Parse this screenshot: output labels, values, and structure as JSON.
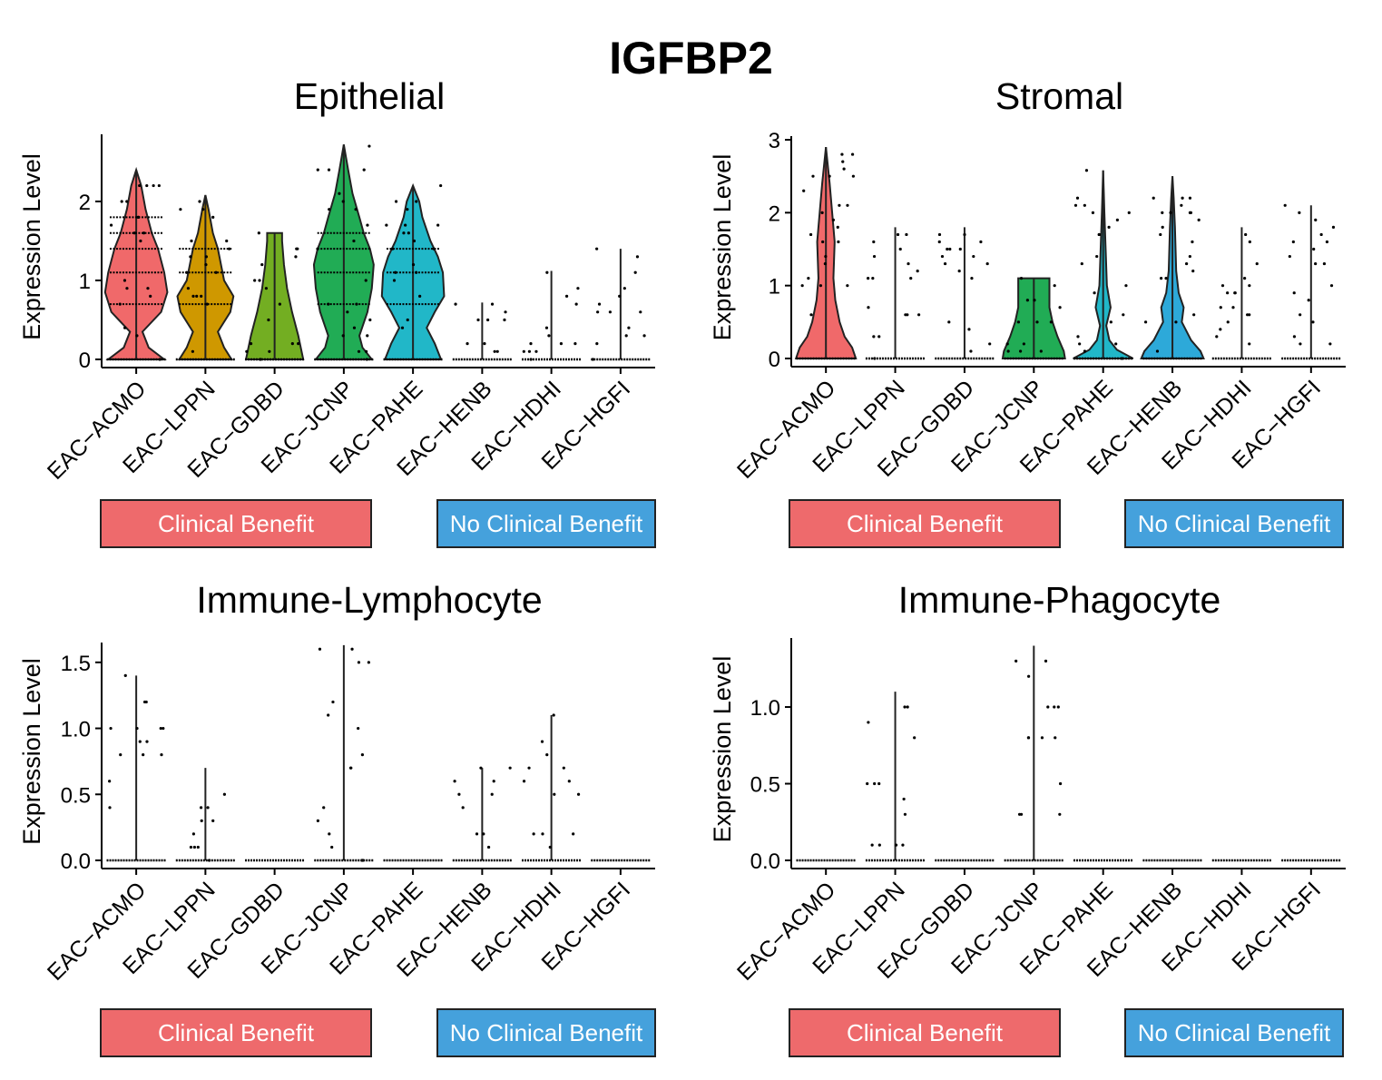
{
  "chart_data": {
    "type": "violin",
    "title": "IGFBP2",
    "categories": [
      "EAC−ACMO",
      "EAC−LPPN",
      "EAC−GDBD",
      "EAC−JCNP",
      "EAC−PAHE",
      "EAC−HENB",
      "EAC−HDHI",
      "EAC−HGFI"
    ],
    "category_colors": [
      "#F0696A",
      "#CF9800",
      "#73AE22",
      "#21AC55",
      "#21B7C8",
      "#2DA9D9",
      "#8F9BF0",
      "#E36BD8"
    ],
    "groups": [
      {
        "label": "Clinical Benefit",
        "color": "#EE6A6C"
      },
      {
        "label": "No Clinical Benefit",
        "color": "#45A1DC"
      }
    ],
    "panels": [
      {
        "title": "Epithelial",
        "ylabel": "Expression Level",
        "ylim": [
          0,
          2.85
        ],
        "yticks": [
          0,
          1,
          2
        ],
        "ytick_labels": [
          "0",
          "1",
          "2"
        ],
        "violins": [
          {
            "max": 2.4,
            "profile": [
              [
                0,
                0.45
              ],
              [
                0.15,
                0.2
              ],
              [
                0.35,
                0.1
              ],
              [
                0.6,
                0.4
              ],
              [
                0.85,
                0.5
              ],
              [
                1.1,
                0.45
              ],
              [
                1.4,
                0.35
              ],
              [
                1.6,
                0.25
              ],
              [
                1.9,
                0.15
              ],
              [
                2.2,
                0.08
              ],
              [
                2.4,
                0
              ]
            ],
            "levels": [
              0.7,
              1.1,
              1.4,
              1.6,
              1.8
            ]
          },
          {
            "max": 2.08,
            "profile": [
              [
                0,
                0.42
              ],
              [
                0.15,
                0.3
              ],
              [
                0.35,
                0.2
              ],
              [
                0.6,
                0.4
              ],
              [
                0.8,
                0.45
              ],
              [
                1.0,
                0.3
              ],
              [
                1.2,
                0.25
              ],
              [
                1.4,
                0.2
              ],
              [
                1.6,
                0.12
              ],
              [
                1.9,
                0.05
              ],
              [
                2.08,
                0
              ]
            ],
            "levels": [
              0.7,
              1.1,
              1.4
            ]
          },
          {
            "max": 1.6,
            "profile": [
              [
                0,
                0.46
              ],
              [
                0.3,
                0.38
              ],
              [
                0.6,
                0.28
              ],
              [
                0.9,
                0.2
              ],
              [
                1.2,
                0.15
              ],
              [
                1.5,
                0.12
              ],
              [
                1.6,
                0.12
              ]
            ],
            "levels": []
          },
          {
            "max": 2.72,
            "profile": [
              [
                0,
                0.45
              ],
              [
                0.15,
                0.3
              ],
              [
                0.3,
                0.25
              ],
              [
                0.6,
                0.38
              ],
              [
                0.9,
                0.45
              ],
              [
                1.2,
                0.48
              ],
              [
                1.4,
                0.42
              ],
              [
                1.6,
                0.32
              ],
              [
                1.8,
                0.25
              ],
              [
                2.1,
                0.14
              ],
              [
                2.4,
                0.07
              ],
              [
                2.72,
                0
              ]
            ],
            "levels": [
              0.7,
              1.1,
              1.4,
              1.6
            ]
          },
          {
            "max": 2.2,
            "profile": [
              [
                0,
                0.45
              ],
              [
                0.2,
                0.35
              ],
              [
                0.4,
                0.22
              ],
              [
                0.6,
                0.35
              ],
              [
                0.8,
                0.5
              ],
              [
                1.1,
                0.48
              ],
              [
                1.3,
                0.4
              ],
              [
                1.5,
                0.28
              ],
              [
                1.8,
                0.15
              ],
              [
                2.0,
                0.1
              ],
              [
                2.2,
                0
              ]
            ],
            "levels": [
              0.7,
              1.1,
              1.4
            ]
          },
          {
            "max": 0.72,
            "profile": [],
            "levels": []
          },
          {
            "max": 1.12,
            "profile": [],
            "levels": []
          },
          {
            "max": 1.4,
            "profile": [],
            "levels": []
          }
        ]
      },
      {
        "title": "Stromal",
        "ylabel": "Expression Level",
        "ylim": [
          0,
          3.05
        ],
        "yticks": [
          0,
          1,
          2,
          3
        ],
        "ytick_labels": [
          "0",
          "1",
          "2",
          "3"
        ],
        "violins": [
          {
            "max": 2.9,
            "profile": [
              [
                0,
                0.48
              ],
              [
                0.15,
                0.42
              ],
              [
                0.3,
                0.3
              ],
              [
                0.5,
                0.22
              ],
              [
                0.8,
                0.15
              ],
              [
                1.1,
                0.12
              ],
              [
                1.6,
                0.14
              ],
              [
                2.0,
                0.1
              ],
              [
                2.4,
                0.06
              ],
              [
                2.9,
                0
              ]
            ],
            "levels": []
          },
          {
            "max": 1.8,
            "profile": [],
            "levels": []
          },
          {
            "max": 1.8,
            "profile": [],
            "levels": []
          },
          {
            "max": 1.1,
            "profile": [
              [
                0,
                0.5
              ],
              [
                0.1,
                0.48
              ],
              [
                0.3,
                0.38
              ],
              [
                0.5,
                0.3
              ],
              [
                0.7,
                0.25
              ],
              [
                0.9,
                0.25
              ],
              [
                1.1,
                0.25
              ]
            ],
            "levels": []
          },
          {
            "max": 2.58,
            "profile": [
              [
                0,
                0.48
              ],
              [
                0.12,
                0.22
              ],
              [
                0.25,
                0.1
              ],
              [
                0.45,
                0.05
              ],
              [
                0.7,
                0.12
              ],
              [
                1.0,
                0.06
              ],
              [
                1.5,
                0.04
              ],
              [
                2.0,
                0.02
              ],
              [
                2.58,
                0
              ]
            ],
            "levels": []
          },
          {
            "max": 2.5,
            "profile": [
              [
                0,
                0.5
              ],
              [
                0.1,
                0.45
              ],
              [
                0.25,
                0.3
              ],
              [
                0.5,
                0.15
              ],
              [
                0.7,
                0.18
              ],
              [
                0.9,
                0.1
              ],
              [
                1.2,
                0.06
              ],
              [
                1.8,
                0.04
              ],
              [
                2.2,
                0.02
              ],
              [
                2.5,
                0
              ]
            ],
            "levels": []
          },
          {
            "max": 1.8,
            "profile": [],
            "levels": []
          },
          {
            "max": 2.1,
            "profile": [],
            "levels": []
          }
        ]
      },
      {
        "title": "Immune-Lymphocyte",
        "ylabel": "Expression Level",
        "ylim": [
          0,
          1.65
        ],
        "yticks": [
          0,
          0.5,
          1.0,
          1.5
        ],
        "ytick_labels": [
          "0.0",
          "0.5",
          "1.0",
          "1.5"
        ],
        "violins": [
          {
            "max": 1.4,
            "profile": [],
            "levels": []
          },
          {
            "max": 0.7,
            "profile": [],
            "levels": []
          },
          {
            "max": 0,
            "profile": [],
            "levels": []
          },
          {
            "max": 1.63,
            "profile": [],
            "levels": []
          },
          {
            "max": 0,
            "profile": [],
            "levels": []
          },
          {
            "max": 0.7,
            "profile": [],
            "levels": []
          },
          {
            "max": 1.1,
            "profile": [],
            "levels": []
          },
          {
            "max": 0,
            "profile": [],
            "levels": []
          }
        ]
      },
      {
        "title": "Immune-Phagocyte",
        "ylabel": "Expression Level",
        "ylim": [
          0,
          1.45
        ],
        "yticks": [
          0,
          0.5,
          1.0
        ],
        "ytick_labels": [
          "0.0",
          "0.5",
          "1.0"
        ],
        "violins": [
          {
            "max": 0,
            "profile": [],
            "levels": []
          },
          {
            "max": 1.1,
            "profile": [],
            "levels": []
          },
          {
            "max": 0,
            "profile": [],
            "levels": []
          },
          {
            "max": 1.4,
            "profile": [],
            "levels": []
          },
          {
            "max": 0,
            "profile": [],
            "levels": []
          },
          {
            "max": 0,
            "profile": [],
            "levels": []
          },
          {
            "max": 0,
            "profile": [],
            "levels": []
          },
          {
            "max": 0,
            "profile": [],
            "levels": []
          }
        ]
      }
    ]
  }
}
